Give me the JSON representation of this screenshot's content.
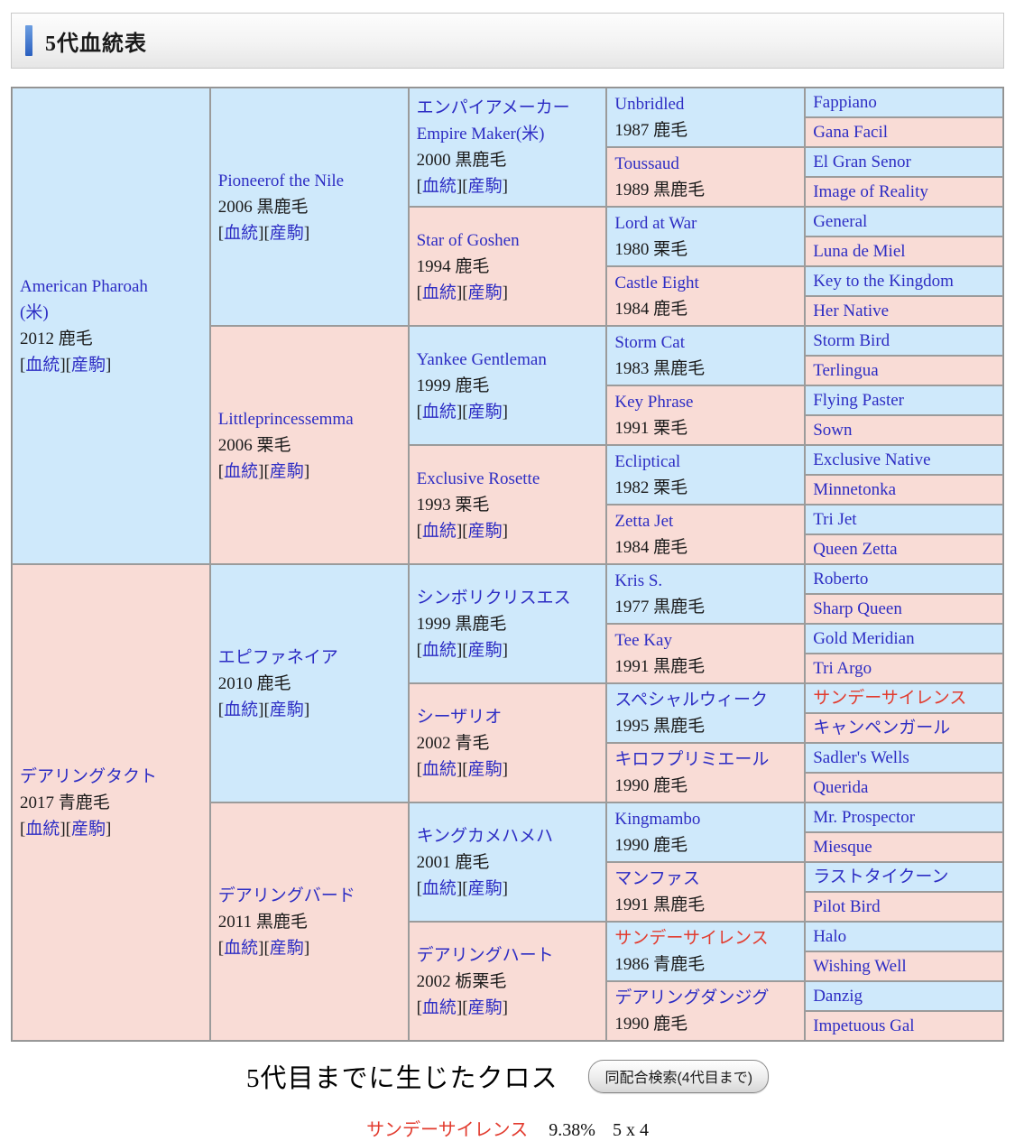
{
  "header": {
    "title": "5代血統表"
  },
  "colors": {
    "male_bg": "#cfe9fb",
    "female_bg": "#f9dcd6",
    "link_blue": "#2d2dc4",
    "highlight_red": "#e23b2e",
    "border_gray": "#9b9b9b"
  },
  "pedigree": {
    "link_labels": {
      "open": "[",
      "bloodline": "血統",
      "close": "]",
      "offspring": "産駒"
    },
    "generations": [
      {
        "gen": 1,
        "rowspan": 16,
        "cells": [
          {
            "name": "American Pharoah\n(米)",
            "sex": "male",
            "info": "2012 鹿毛",
            "has_links": true
          },
          {
            "name": "デアリングタクト",
            "sex": "female",
            "info": "2017 青鹿毛",
            "has_links": true
          }
        ]
      },
      {
        "gen": 2,
        "rowspan": 8,
        "cells": [
          {
            "name": "Pioneerof the Nile",
            "sex": "male",
            "info": "2006 黒鹿毛",
            "has_links": true
          },
          {
            "name": "Littleprincessemma",
            "sex": "female",
            "info": "2006 栗毛",
            "has_links": true
          },
          {
            "name": "エピファネイア",
            "sex": "male",
            "info": "2010 鹿毛",
            "has_links": true
          },
          {
            "name": "デアリングバード",
            "sex": "female",
            "info": "2011 黒鹿毛",
            "has_links": true
          }
        ]
      },
      {
        "gen": 3,
        "rowspan": 4,
        "cells": [
          {
            "name": "エンパイアメーカー\nEmpire Maker(米)",
            "sex": "male",
            "info": "2000 黒鹿毛",
            "has_links": true
          },
          {
            "name": "Star of Goshen",
            "sex": "female",
            "info": "1994 鹿毛",
            "has_links": true
          },
          {
            "name": "Yankee Gentleman",
            "sex": "male",
            "info": "1999 鹿毛",
            "has_links": true
          },
          {
            "name": "Exclusive Rosette",
            "sex": "female",
            "info": "1993 栗毛",
            "has_links": true
          },
          {
            "name": "シンボリクリスエス",
            "sex": "male",
            "info": "1999 黒鹿毛",
            "has_links": true
          },
          {
            "name": "シーザリオ",
            "sex": "female",
            "info": "2002 青毛",
            "has_links": true
          },
          {
            "name": "キングカメハメハ",
            "sex": "male",
            "info": "2001 鹿毛",
            "has_links": true
          },
          {
            "name": "デアリングハート",
            "sex": "female",
            "info": "2002 栃栗毛",
            "has_links": true
          }
        ]
      },
      {
        "gen": 4,
        "rowspan": 2,
        "cells": [
          {
            "name": "Unbridled",
            "sex": "male",
            "info": "1987 鹿毛"
          },
          {
            "name": "Toussaud",
            "sex": "female",
            "info": "1989 黒鹿毛"
          },
          {
            "name": "Lord at War",
            "sex": "male",
            "info": "1980 栗毛"
          },
          {
            "name": "Castle Eight",
            "sex": "female",
            "info": "1984 鹿毛"
          },
          {
            "name": "Storm Cat",
            "sex": "male",
            "info": "1983 黒鹿毛"
          },
          {
            "name": "Key Phrase",
            "sex": "female",
            "info": "1991 栗毛"
          },
          {
            "name": "Ecliptical",
            "sex": "male",
            "info": "1982 栗毛"
          },
          {
            "name": "Zetta Jet",
            "sex": "female",
            "info": "1984 鹿毛"
          },
          {
            "name": "Kris S.",
            "sex": "male",
            "info": "1977 黒鹿毛"
          },
          {
            "name": "Tee Kay",
            "sex": "female",
            "info": "1991 黒鹿毛"
          },
          {
            "name": "スペシャルウィーク",
            "sex": "male",
            "info": "1995 黒鹿毛"
          },
          {
            "name": "キロフプリミエール",
            "sex": "female",
            "info": "1990 鹿毛"
          },
          {
            "name": "Kingmambo",
            "sex": "male",
            "info": "1990 鹿毛"
          },
          {
            "name": "マンファス",
            "sex": "female",
            "info": "1991 黒鹿毛"
          },
          {
            "name": "サンデーサイレンス",
            "sex": "male",
            "info": "1986 青鹿毛",
            "highlight": true
          },
          {
            "name": "デアリングダンジグ",
            "sex": "female",
            "info": "1990 鹿毛"
          }
        ]
      },
      {
        "gen": 5,
        "rowspan": 1,
        "cells": [
          {
            "name": "Fappiano",
            "sex": "male"
          },
          {
            "name": "Gana Facil",
            "sex": "female"
          },
          {
            "name": "El Gran Senor",
            "sex": "male"
          },
          {
            "name": "Image of Reality",
            "sex": "female"
          },
          {
            "name": "General",
            "sex": "male"
          },
          {
            "name": "Luna de Miel",
            "sex": "female"
          },
          {
            "name": "Key to the Kingdom",
            "sex": "male"
          },
          {
            "name": "Her Native",
            "sex": "female"
          },
          {
            "name": "Storm Bird",
            "sex": "male"
          },
          {
            "name": "Terlingua",
            "sex": "female"
          },
          {
            "name": "Flying Paster",
            "sex": "male"
          },
          {
            "name": "Sown",
            "sex": "female"
          },
          {
            "name": "Exclusive Native",
            "sex": "male"
          },
          {
            "name": "Minnetonka",
            "sex": "female"
          },
          {
            "name": "Tri Jet",
            "sex": "male"
          },
          {
            "name": "Queen Zetta",
            "sex": "female"
          },
          {
            "name": "Roberto",
            "sex": "male"
          },
          {
            "name": "Sharp Queen",
            "sex": "female"
          },
          {
            "name": "Gold Meridian",
            "sex": "male"
          },
          {
            "name": "Tri Argo",
            "sex": "female"
          },
          {
            "name": "サンデーサイレンス",
            "sex": "male",
            "highlight": true
          },
          {
            "name": "キャンペンガール",
            "sex": "female"
          },
          {
            "name": "Sadler's Wells",
            "sex": "male"
          },
          {
            "name": "Querida",
            "sex": "female"
          },
          {
            "name": "Mr. Prospector",
            "sex": "male"
          },
          {
            "name": "Miesque",
            "sex": "female"
          },
          {
            "name": "ラストタイクーン",
            "sex": "male"
          },
          {
            "name": "Pilot Bird",
            "sex": "female"
          },
          {
            "name": "Halo",
            "sex": "male"
          },
          {
            "name": "Wishing Well",
            "sex": "female"
          },
          {
            "name": "Danzig",
            "sex": "male"
          },
          {
            "name": "Impetuous Gal",
            "sex": "female"
          }
        ]
      }
    ]
  },
  "footer": {
    "heading": "5代目までに生じたクロス",
    "search_button": "同配合検索(4代目まで)",
    "crosses": [
      {
        "name": "サンデーサイレンス",
        "percent": "9.38%",
        "pattern": "5 x 4"
      }
    ]
  }
}
